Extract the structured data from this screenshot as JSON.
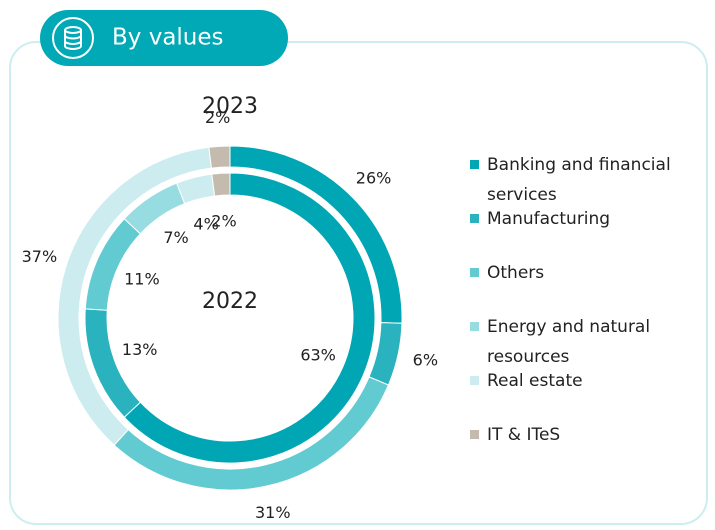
{
  "chart_data": {
    "type": "donut",
    "title": "By values",
    "categories": [
      "Banking and financial services",
      "Manufacturing",
      "Others",
      "Energy and natural resources",
      "Real estate",
      "IT & ITeS"
    ],
    "colors": [
      "#00a6b4",
      "#2ab2be",
      "#62cbd2",
      "#96dce1",
      "#cdecef",
      "#c4bbae"
    ],
    "series": [
      {
        "name": "2023",
        "values": [
          26,
          6,
          31,
          null,
          37,
          2
        ],
        "value_labels": [
          "26%",
          "6%",
          "31%",
          null,
          "37%",
          "2%"
        ]
      },
      {
        "name": "2022",
        "values": [
          63,
          13,
          11,
          7,
          4,
          2
        ],
        "value_labels": [
          "63%",
          "13%",
          "11%",
          "7%",
          "4%",
          "2%"
        ]
      }
    ]
  }
}
